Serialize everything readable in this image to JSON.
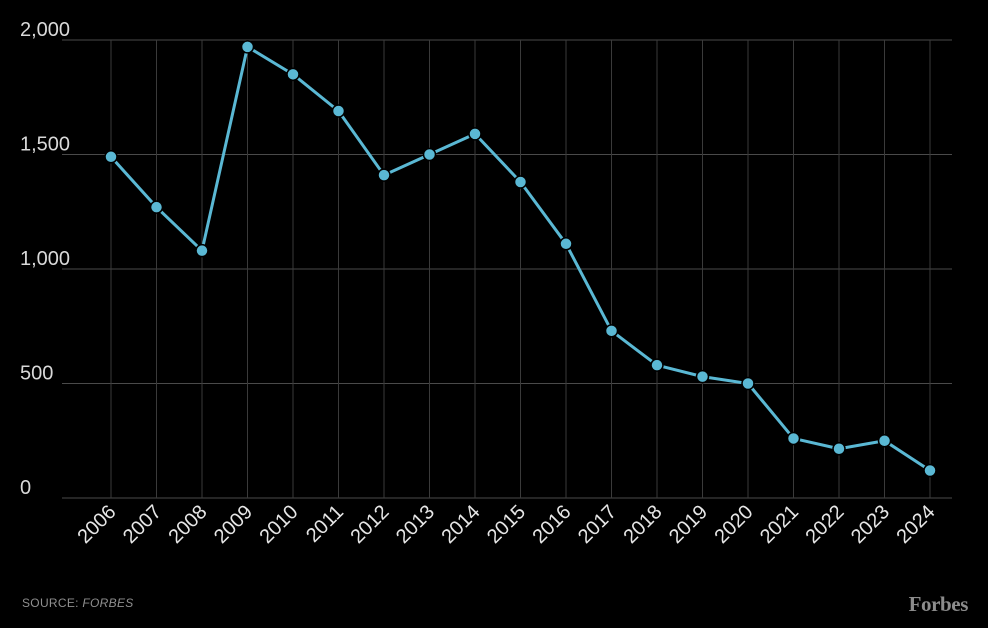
{
  "chart_data": {
    "type": "line",
    "title": "",
    "xlabel": "",
    "ylabel": "",
    "categories": [
      "2006",
      "2007",
      "2008",
      "2009",
      "2010",
      "2011",
      "2012",
      "2013",
      "2014",
      "2015",
      "2016",
      "2017",
      "2018",
      "2019",
      "2020",
      "2021",
      "2022",
      "2023",
      "2024"
    ],
    "series": [
      {
        "values": [
          1490,
          1270,
          1080,
          1970,
          1850,
          1690,
          1410,
          1500,
          1590,
          1380,
          1110,
          730,
          580,
          530,
          500,
          260,
          215,
          250,
          120
        ]
      }
    ],
    "ylim": [
      0,
      2000
    ],
    "yticks": [
      "0",
      "500",
      "1,000",
      "1,500",
      "2,000"
    ],
    "ytick_values": [
      0,
      500,
      1000,
      1500,
      2000
    ],
    "grid": true,
    "line_color": "#5ab8d4",
    "background": "#000000"
  },
  "footer": {
    "source_label": "SOURCE: ",
    "source_name": "FORBES",
    "brand": "Forbes"
  }
}
